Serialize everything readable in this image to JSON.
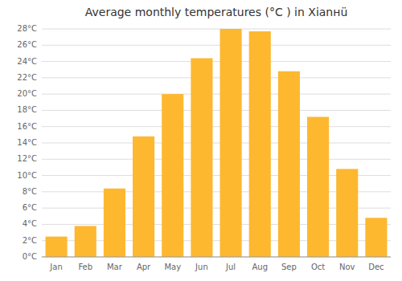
{
  "chart_data": {
    "type": "bar",
    "title": "Average monthly temperatures (°C ) in Xianнü",
    "categories": [
      "Jan",
      "Feb",
      "Mar",
      "Apr",
      "May",
      "Jun",
      "Jul",
      "Aug",
      "Sep",
      "Oct",
      "Nov",
      "Dec"
    ],
    "values": [
      2.5,
      3.8,
      8.4,
      14.8,
      20.0,
      24.4,
      28.0,
      27.7,
      22.8,
      17.2,
      10.8,
      4.8
    ],
    "color": "#FDB830",
    "ylim": [
      0,
      28
    ],
    "yticks": [
      {
        "value": 0,
        "label": "0°C"
      },
      {
        "value": 2,
        "label": "2°C"
      },
      {
        "value": 4,
        "label": "4°C"
      },
      {
        "value": 6,
        "label": "6°C"
      },
      {
        "value": 8,
        "label": "8°C"
      },
      {
        "value": 10,
        "label": "10°C"
      },
      {
        "value": 12,
        "label": "12°C"
      },
      {
        "value": 14,
        "label": "14°C"
      },
      {
        "value": 16,
        "label": "16°C"
      },
      {
        "value": 18,
        "label": "18°C"
      },
      {
        "value": 20,
        "label": "20°C"
      },
      {
        "value": 22,
        "label": "22°C"
      },
      {
        "value": 24,
        "label": "24°C"
      },
      {
        "value": 26,
        "label": "26°C"
      },
      {
        "value": 28,
        "label": "28°C"
      }
    ],
    "grid": true
  }
}
